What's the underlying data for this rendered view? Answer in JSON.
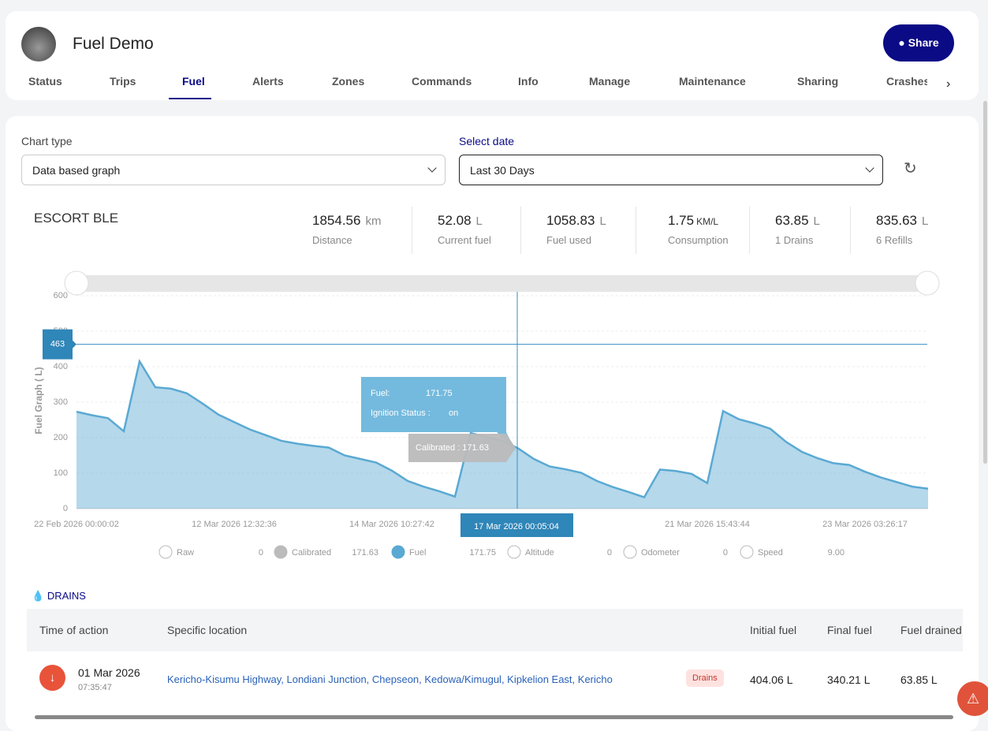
{
  "header": {
    "title": "Fuel Demo",
    "share": "Share"
  },
  "tabs": [
    "Status",
    "Trips",
    "Fuel",
    "Alerts",
    "Zones",
    "Commands",
    "Info",
    "Manage",
    "Maintenance",
    "Sharing",
    "Crashes"
  ],
  "filters": {
    "chart_type_label": "Chart type",
    "chart_type": "Data based graph",
    "date_label": "Select date",
    "date": "Last 30 Days"
  },
  "summary": {
    "vehicle": "ESCORT BLE",
    "stats": [
      {
        "value": "1854.56",
        "unit": "km",
        "label": "Distance"
      },
      {
        "value": "52.08",
        "unit": "L",
        "label": "Current fuel"
      },
      {
        "value": "1058.83",
        "unit": "L",
        "label": "Fuel used"
      },
      {
        "value": "1.75",
        "unit": "KM/L",
        "label": "Consumption"
      },
      {
        "value": "63.85",
        "unit": "L",
        "label": "1 Drains"
      },
      {
        "value": "835.63",
        "unit": "L",
        "label": "6 Refills"
      }
    ]
  },
  "chart_data": {
    "type": "area",
    "y_label": "Fuel Graph ( L)",
    "ylim": [
      0,
      600
    ],
    "yticks": [
      0,
      100,
      200,
      300,
      400,
      500,
      600
    ],
    "grid": true,
    "x_tick_labels": [
      "22 Feb 2026 00:00:02",
      "12 Mar 2026 12:32:36",
      "14 Mar 2026 10:27:42",
      "21 Mar 2026 15:43:44",
      "23 Mar 2026 03:26:17"
    ],
    "series": [
      {
        "name": "Fuel",
        "color": "#5aa9d3",
        "values": [
          273,
          263,
          255,
          218,
          415,
          342,
          338,
          325,
          296,
          265,
          244,
          223,
          207,
          191,
          183,
          177,
          172,
          150,
          140,
          130,
          107,
          78,
          62,
          49,
          34,
          213,
          202,
          191,
          170,
          140,
          119,
          111,
          101,
          78,
          61,
          47,
          32,
          110,
          106,
          98,
          72,
          275,
          252,
          240,
          225,
          188,
          160,
          142,
          128,
          123,
          104,
          88,
          75,
          62,
          56
        ]
      }
    ],
    "marker_value": 463,
    "cursor_label": "17 Mar 2026 00:05:04",
    "tooltip": {
      "fuel_label": "Fuel:",
      "fuel": "171.75",
      "ignition_label": "Ignition Status :",
      "ignition": "on",
      "calibrated": "Calibrated : 171.63"
    },
    "legend": [
      {
        "name": "Raw",
        "value": "0"
      },
      {
        "name": "Calibrated",
        "value": "171.63"
      },
      {
        "name": "Fuel",
        "value": "171.75"
      },
      {
        "name": "Altitude",
        "value": "0"
      },
      {
        "name": "Odometer",
        "value": "0"
      },
      {
        "name": "Speed",
        "value": "9.00"
      }
    ]
  },
  "drains": {
    "title": "DRAINS",
    "columns": [
      "Time of action",
      "Specific location",
      "Initial fuel",
      "Final fuel",
      "Fuel drained"
    ],
    "rows": [
      {
        "date": "01 Mar 2026",
        "time": "07:35:47",
        "location": "Kericho-Kisumu Highway, Londiani Junction, Chepseon, Kedowa/Kimugul, Kipkelion East, Kericho",
        "type": "Drains",
        "initial": "404.06 L",
        "final": "340.21 L",
        "drained": "63.85 L"
      }
    ]
  }
}
